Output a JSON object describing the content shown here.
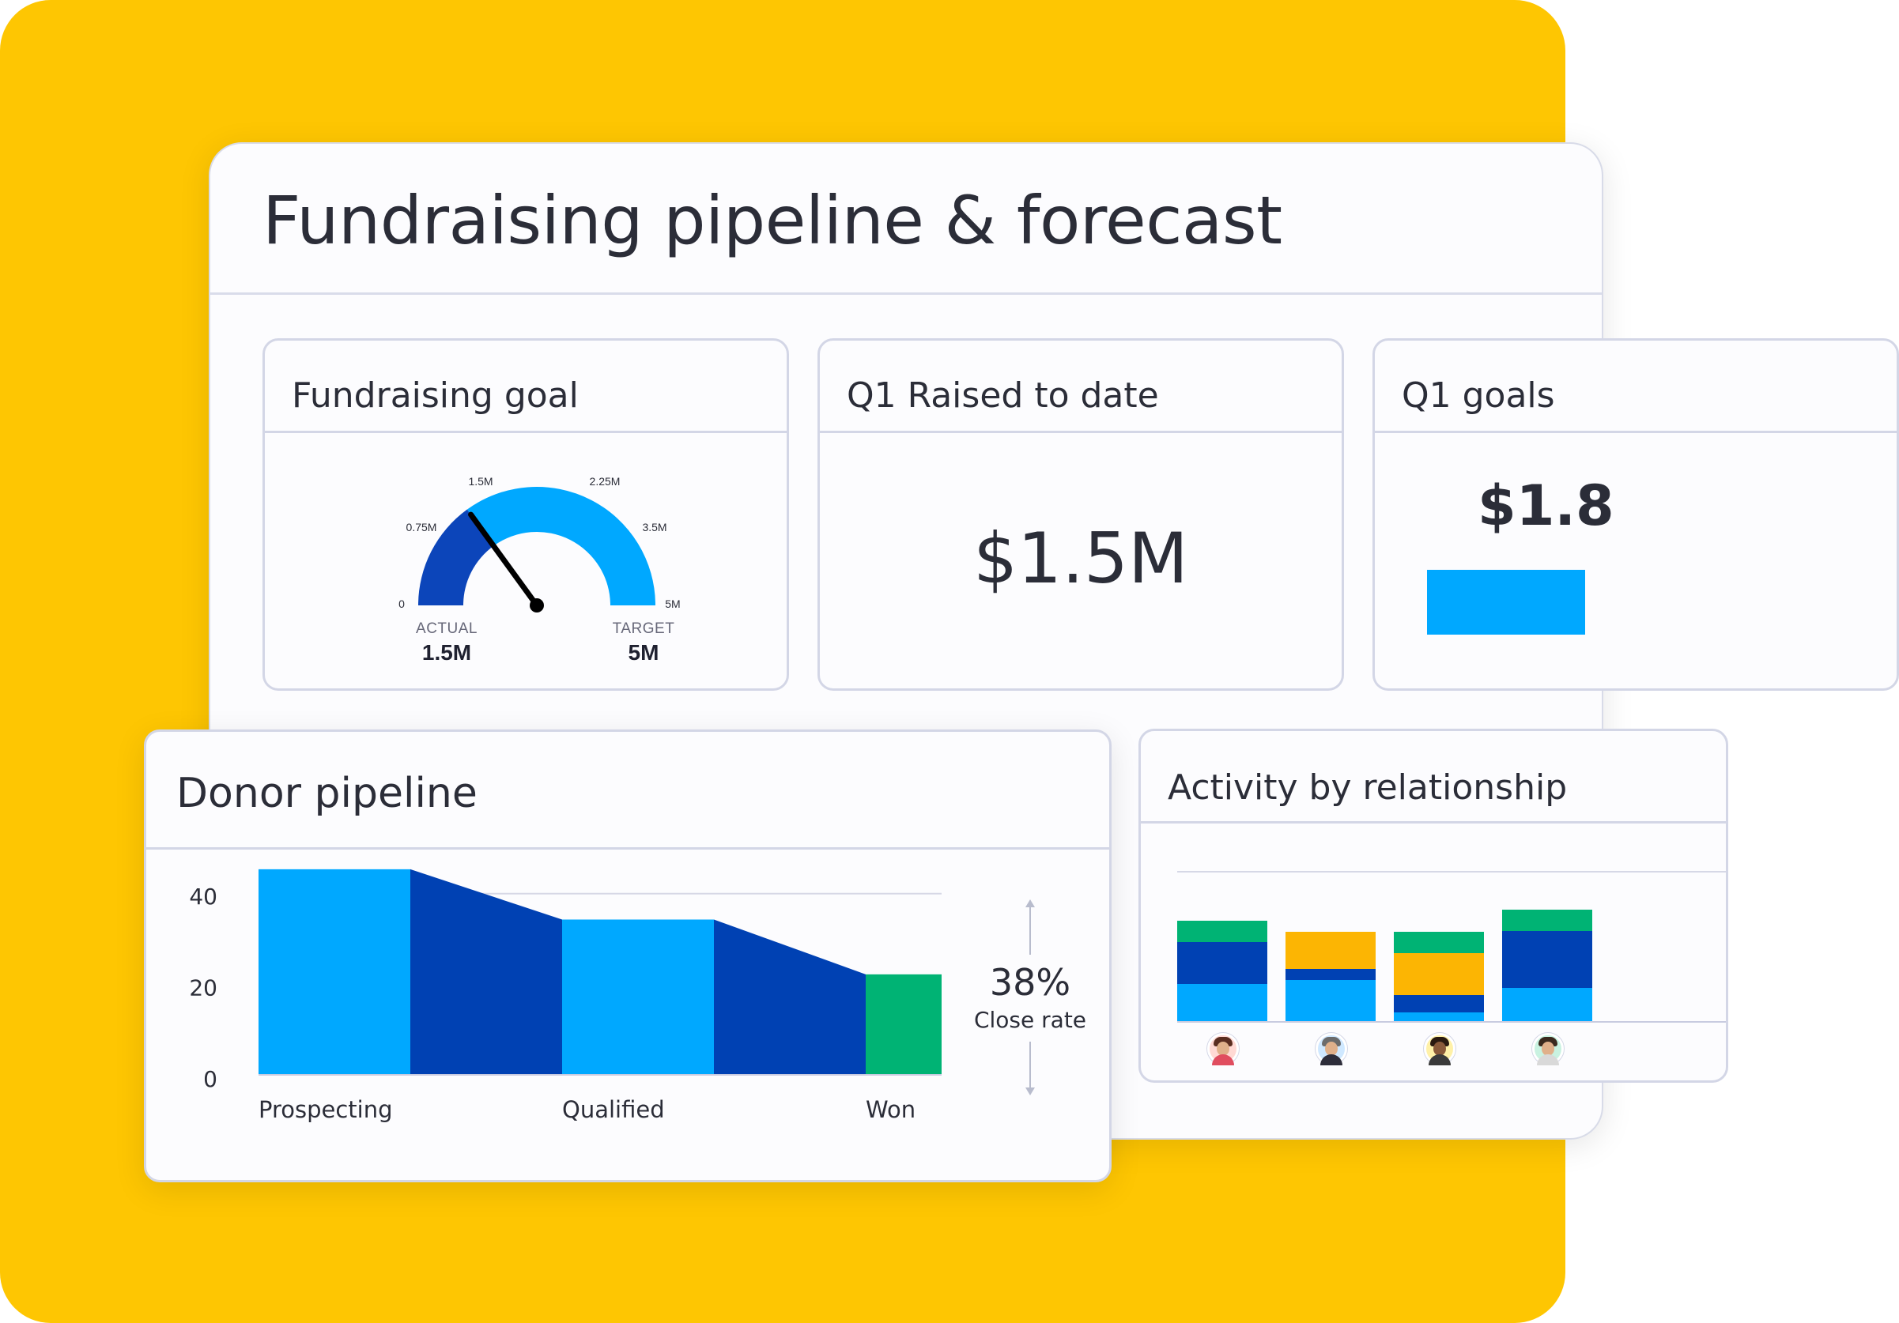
{
  "dashboard": {
    "title": "Fundraising pipeline & forecast"
  },
  "widgets": {
    "fundraising_goal": {
      "title": "Fundraising goal",
      "gauge": {
        "min_label": "0",
        "tick_labels": [
          "0.75M",
          "1.5M",
          "2.25M",
          "3.5M"
        ],
        "max_label": "5M",
        "actual_caption": "ACTUAL",
        "actual_value": "1.5M",
        "target_caption": "TARGET",
        "target_value": "5M",
        "needle_fraction": 0.3,
        "colors": {
          "actual": "#0c45ba",
          "remaining": "#00a8ff",
          "needle": "#000000"
        }
      }
    },
    "q1_raised": {
      "title": "Q1 Raised to date",
      "value": "$1.5M"
    },
    "q1_goals": {
      "title": "Q1 goals",
      "value": "$1.8",
      "bar_color": "#00a8ff"
    },
    "donor_pipeline": {
      "title": "Donor pipeline",
      "close_rate_value": "38%",
      "close_rate_label": "Close rate"
    },
    "activity_by_relationship": {
      "title": "Activity by relationship",
      "avatars": [
        "person-1",
        "person-2",
        "person-3",
        "person-4"
      ]
    }
  },
  "chart_data": [
    {
      "type": "area",
      "title": "Donor pipeline",
      "y_ticks": [
        "40",
        "20",
        "0"
      ],
      "ylim": [
        0,
        50
      ],
      "stages": [
        "Prospecting",
        "",
        "Qualified",
        "",
        "Won"
      ],
      "values": [
        45,
        45,
        34,
        34,
        22
      ],
      "colors": [
        "#00a8ff",
        "#0041b3",
        "#00a8ff",
        "#0041b3",
        "#00b374"
      ],
      "stage_labels_shown": [
        "Prospecting",
        "Qualified",
        "Won"
      ]
    },
    {
      "type": "bar",
      "title": "Activity by relationship",
      "stacked": true,
      "categories": [
        "person-1",
        "person-2",
        "person-3",
        "person-4"
      ],
      "series": [
        {
          "color": "#00a8ff",
          "values": [
            48,
            53,
            12,
            43
          ]
        },
        {
          "color": "#0041b3",
          "values": [
            53,
            14,
            22,
            72
          ]
        },
        {
          "color": "#fcb503",
          "values": [
            0,
            47,
            53,
            0
          ]
        },
        {
          "color": "#00b374",
          "values": [
            27,
            0,
            27,
            27
          ]
        }
      ]
    }
  ]
}
